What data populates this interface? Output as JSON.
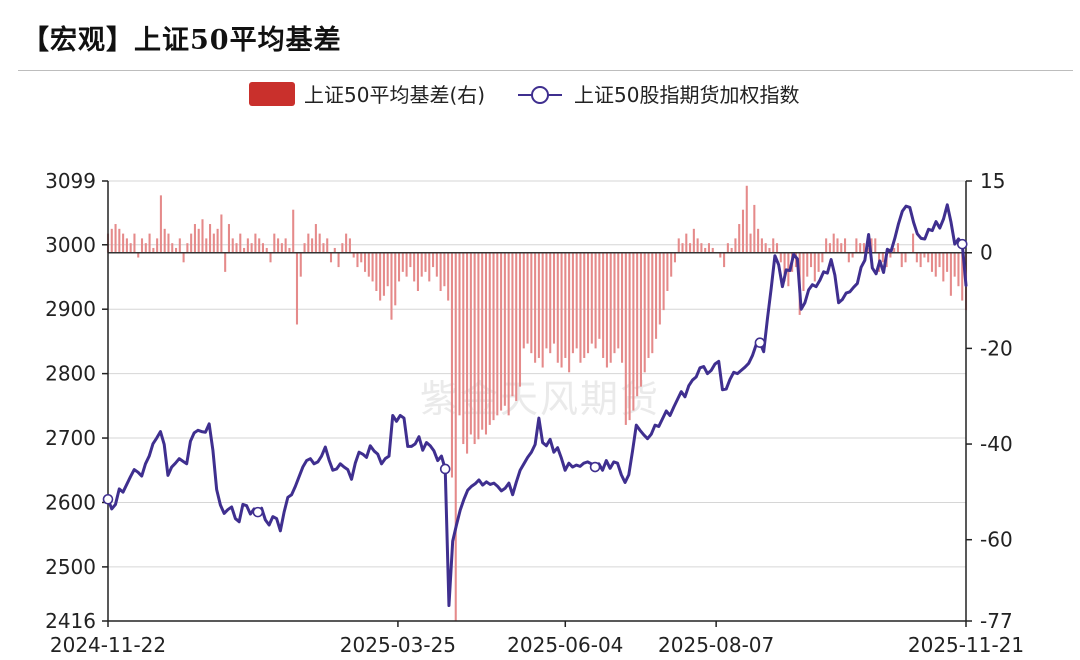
{
  "title": "【宏观】上证50平均基差",
  "watermark": "紫金天风期货",
  "colors": {
    "bar": "#e58a8a",
    "bar_legend": "#c9302c",
    "line": "#3f2f8f",
    "grid": "#d6d6d6",
    "axis": "#222222"
  },
  "chart_data": {
    "type": "bar+line",
    "legend_position": "top-center",
    "grid": true,
    "x_range": [
      "2024-11-22",
      "2025-11-21"
    ],
    "x_ticks": [
      "2024-11-22",
      "2025-03-25",
      "2025-06-04",
      "2025-08-07",
      "2025-11-21"
    ],
    "y_left": {
      "ticks": [
        2416,
        2500,
        2600,
        2700,
        2800,
        2900,
        3000,
        3099
      ],
      "ylim": [
        2416,
        3099
      ]
    },
    "y_right": {
      "ticks": [
        -77,
        -60,
        -40,
        -20,
        0,
        15
      ],
      "ylim": [
        -77,
        15
      ]
    },
    "series": [
      {
        "name": "上证50平均基差(右)",
        "type": "bar",
        "axis": "right",
        "values": [
          4,
          5,
          6,
          5,
          4,
          3,
          2,
          4,
          -1,
          3,
          2,
          4,
          1,
          3,
          12,
          5,
          4,
          2,
          1,
          3,
          -2,
          2,
          4,
          6,
          5,
          7,
          3,
          6,
          4,
          5,
          8,
          -4,
          6,
          3,
          2,
          4,
          1,
          3,
          2,
          4,
          3,
          2,
          1,
          -2,
          4,
          3,
          2,
          3,
          1,
          9,
          -15,
          -5,
          2,
          4,
          3,
          6,
          4,
          2,
          3,
          -2,
          1,
          -3,
          2,
          4,
          3,
          -1,
          -3,
          -2,
          -4,
          -5,
          -6,
          -8,
          -10,
          -9,
          -7,
          -14,
          -11,
          -6,
          -4,
          -5,
          -3,
          -6,
          -8,
          -5,
          -4,
          -6,
          -3,
          -5,
          -8,
          -7,
          -10,
          -47,
          -77,
          -34,
          -40,
          -42,
          -38,
          -40,
          -39,
          -37,
          -38,
          -36,
          -35,
          -34,
          -33,
          -32,
          -34,
          -30,
          -31,
          -28,
          -20,
          -19,
          -21,
          -23,
          -22,
          -24,
          -20,
          -21,
          -19,
          -23,
          -24,
          -22,
          -25,
          -21,
          -20,
          -23,
          -22,
          -21,
          -19,
          -20,
          -18,
          -22,
          -24,
          -23,
          -21,
          -20,
          -23,
          -36,
          -35,
          -33,
          -30,
          -28,
          -25,
          -22,
          -21,
          -18,
          -15,
          -12,
          -8,
          -5,
          -2,
          3,
          2,
          4,
          2,
          5,
          3,
          2,
          1,
          2,
          1,
          0,
          -1,
          -3,
          2,
          1,
          3,
          6,
          9,
          14,
          4,
          10,
          5,
          3,
          2,
          1,
          3,
          2,
          -2,
          -6,
          -7,
          -4,
          -3,
          -13,
          -8,
          -5,
          -3,
          -6,
          -4,
          -2,
          3,
          2,
          4,
          3,
          2,
          3,
          -2,
          -1,
          3,
          2,
          2,
          1,
          3,
          3,
          -4,
          -2,
          -3,
          -1,
          1,
          2,
          -3,
          -2,
          0,
          4,
          -2,
          -3,
          -1,
          -2,
          -4,
          -5,
          -3,
          -6,
          -4,
          -9,
          -5,
          -7,
          -10,
          -12
        ]
      },
      {
        "name": "上证50股指期货加权指数",
        "type": "line",
        "axis": "left",
        "values": [
          2605,
          2590,
          2597,
          2621,
          2616,
          2628,
          2640,
          2651,
          2647,
          2641,
          2660,
          2672,
          2691,
          2700,
          2710,
          2690,
          2642,
          2655,
          2661,
          2668,
          2664,
          2660,
          2695,
          2708,
          2712,
          2710,
          2709,
          2722,
          2681,
          2620,
          2596,
          2583,
          2589,
          2593,
          2575,
          2570,
          2597,
          2595,
          2582,
          2590,
          2585,
          2591,
          2573,
          2565,
          2578,
          2575,
          2556,
          2585,
          2608,
          2612,
          2625,
          2640,
          2655,
          2665,
          2668,
          2660,
          2663,
          2672,
          2686,
          2666,
          2650,
          2652,
          2660,
          2655,
          2651,
          2636,
          2661,
          2678,
          2675,
          2670,
          2688,
          2680,
          2675,
          2660,
          2668,
          2672,
          2735,
          2726,
          2735,
          2731,
          2687,
          2687,
          2691,
          2702,
          2681,
          2693,
          2688,
          2680,
          2665,
          2672,
          2652,
          2440,
          2540,
          2565,
          2588,
          2605,
          2619,
          2625,
          2629,
          2635,
          2627,
          2632,
          2628,
          2630,
          2625,
          2618,
          2622,
          2630,
          2612,
          2632,
          2650,
          2660,
          2670,
          2678,
          2690,
          2731,
          2693,
          2688,
          2698,
          2678,
          2685,
          2669,
          2650,
          2661,
          2655,
          2658,
          2656,
          2661,
          2663,
          2660,
          2655,
          2660,
          2650,
          2665,
          2653,
          2663,
          2661,
          2643,
          2631,
          2643,
          2680,
          2720,
          2712,
          2705,
          2699,
          2706,
          2720,
          2718,
          2730,
          2742,
          2735,
          2748,
          2760,
          2772,
          2764,
          2781,
          2790,
          2795,
          2809,
          2811,
          2800,
          2805,
          2815,
          2819,
          2775,
          2776,
          2791,
          2802,
          2800,
          2805,
          2810,
          2816,
          2828,
          2845,
          2848,
          2834,
          2885,
          2932,
          2983,
          2969,
          2935,
          2961,
          2960,
          2985,
          2978,
          2900,
          2910,
          2930,
          2938,
          2935,
          2945,
          2958,
          2956,
          2977,
          2953,
          2910,
          2915,
          2925,
          2927,
          2934,
          2940,
          2965,
          2976,
          3016,
          2964,
          2955,
          2975,
          2957,
          2993,
          2990,
          3010,
          3033,
          3052,
          3060,
          3058,
          3035,
          3017,
          3010,
          3009,
          3024,
          3022,
          3036,
          3026,
          3040,
          3062,
          3035,
          3001,
          3009,
          3001,
          2937
        ]
      }
    ],
    "line_markers_at_index": [
      0,
      40,
      90,
      130,
      174,
      228,
      257
    ]
  }
}
